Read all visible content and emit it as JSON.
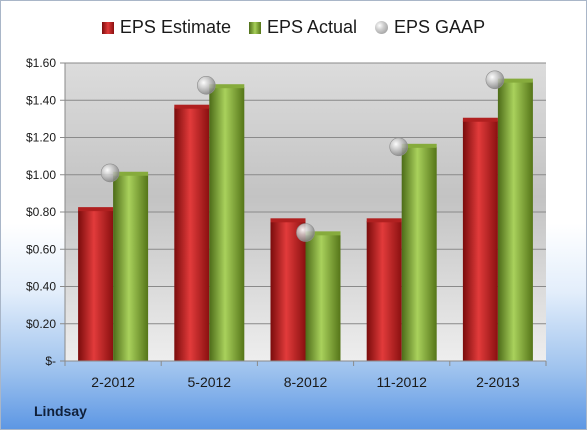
{
  "footer": {
    "company": "Lindsay"
  },
  "chart_data": {
    "type": "bar",
    "categories": [
      "2-2012",
      "5-2012",
      "8-2012",
      "11-2012",
      "2-2013"
    ],
    "series": [
      {
        "name": "EPS Estimate",
        "type": "bar",
        "color": "#c62828",
        "values": [
          0.81,
          1.36,
          0.75,
          0.75,
          1.29
        ]
      },
      {
        "name": "EPS Actual",
        "type": "bar",
        "color": "#8db33a",
        "values": [
          1.0,
          1.47,
          0.68,
          1.15,
          1.5
        ]
      },
      {
        "name": "EPS GAAP",
        "type": "scatter",
        "color": "#b0b0b0",
        "values": [
          1.01,
          1.48,
          0.69,
          1.15,
          1.51
        ]
      }
    ],
    "yticks": [
      "$-",
      "$0.20",
      "$0.40",
      "$0.60",
      "$0.80",
      "$1.00",
      "$1.20",
      "$1.40",
      "$1.60"
    ],
    "ylim": [
      0,
      1.6
    ],
    "legend_position": "top",
    "grid": true
  }
}
